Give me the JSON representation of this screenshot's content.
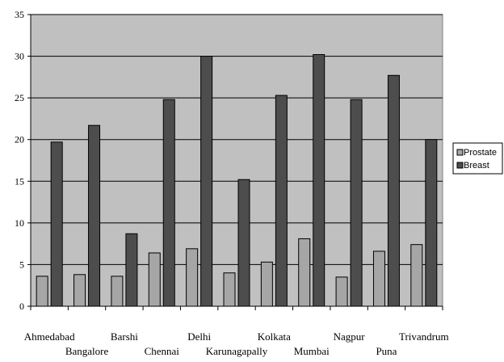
{
  "chart_data": {
    "type": "bar",
    "categories": [
      "Ahmedabad",
      "Bangalore",
      "Barshi",
      "Chennai",
      "Delhi",
      "Karunagapally",
      "Kolkata",
      "Mumbai",
      "Nagpur",
      "Puna",
      "Trivandrum"
    ],
    "series": [
      {
        "name": "Prostate",
        "values": [
          3.6,
          3.8,
          3.6,
          6.4,
          6.9,
          4.0,
          5.3,
          8.1,
          3.5,
          6.6,
          7.4
        ],
        "color": "#a6a6a6"
      },
      {
        "name": "Breast",
        "values": [
          19.7,
          21.7,
          8.7,
          24.8,
          30.0,
          15.2,
          25.3,
          30.2,
          24.8,
          27.7,
          20.0
        ],
        "color": "#4d4d4d"
      }
    ],
    "ylim": [
      0,
      35
    ],
    "yticks": [
      "0",
      "5",
      "10",
      "15",
      "20",
      "25",
      "30",
      "35"
    ],
    "grid": true,
    "legend": "right",
    "plot_background": "#c0c0c0"
  }
}
